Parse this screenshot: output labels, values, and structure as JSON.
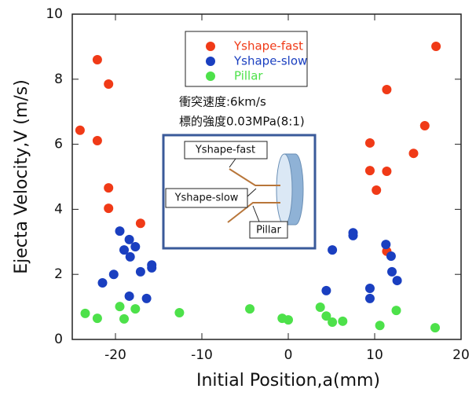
{
  "chart_data": {
    "type": "scatter",
    "x_label": "Initial Position,a(mm)",
    "y_label": "Ejecta Velocity,V (m/s)",
    "xlim": [
      -25,
      20
    ],
    "ylim": [
      0,
      10
    ],
    "xticks": [
      -20,
      -10,
      0,
      10,
      20
    ],
    "yticks": [
      0,
      2,
      4,
      6,
      8,
      10
    ],
    "legend": "top-center",
    "annotations": [
      "衝突速度:6km/s",
      "標的強度0.03MPa(8:1)"
    ],
    "inset_labels": [
      "Yshape-fast",
      "Yshape-slow",
      "Pillar"
    ],
    "series": [
      {
        "name": "Yshape-fast",
        "color": "#f03a17",
        "x": [
          -24.1,
          -22.1,
          -22.1,
          -20.8,
          -20.8,
          -20.8,
          -17.1,
          9.45,
          9.45,
          10.2,
          11.4,
          11.4,
          11.4,
          14.5,
          15.8,
          17.1
        ],
        "values": [
          6.43,
          8.6,
          6.11,
          7.85,
          4.66,
          4.03,
          3.57,
          6.04,
          5.19,
          4.59,
          7.68,
          5.17,
          2.71,
          5.72,
          6.57,
          9.01
        ]
      },
      {
        "name": "Yshape-slow",
        "color": "#1a3fc0",
        "x": [
          -19.5,
          -21.5,
          -20.2,
          -19.0,
          -18.4,
          -18.3,
          -17.7,
          -17.1,
          -15.8,
          -15.8,
          -18.4,
          -16.4,
          4.4,
          5.1,
          7.5,
          7.5,
          9.45,
          9.45,
          11.3,
          11.9,
          12.0,
          12.6
        ],
        "values": [
          3.33,
          1.74,
          2.0,
          2.75,
          3.07,
          2.54,
          2.85,
          2.08,
          2.29,
          2.2,
          1.33,
          1.26,
          1.5,
          2.75,
          3.28,
          3.19,
          1.57,
          1.26,
          2.92,
          2.56,
          2.08,
          1.81
        ]
      },
      {
        "name": "Pillar",
        "color": "#4de14a",
        "x": [
          -23.5,
          -22.1,
          -19.5,
          -19.0,
          -17.7,
          -12.6,
          -4.45,
          -0.7,
          0,
          3.7,
          4.4,
          5.1,
          6.3,
          10.6,
          12.5,
          17.0
        ],
        "values": [
          0.8,
          0.65,
          1.01,
          0.63,
          0.94,
          0.82,
          0.94,
          0.65,
          0.6,
          0.99,
          0.72,
          0.53,
          0.56,
          0.43,
          0.89,
          0.36
        ]
      }
    ]
  }
}
